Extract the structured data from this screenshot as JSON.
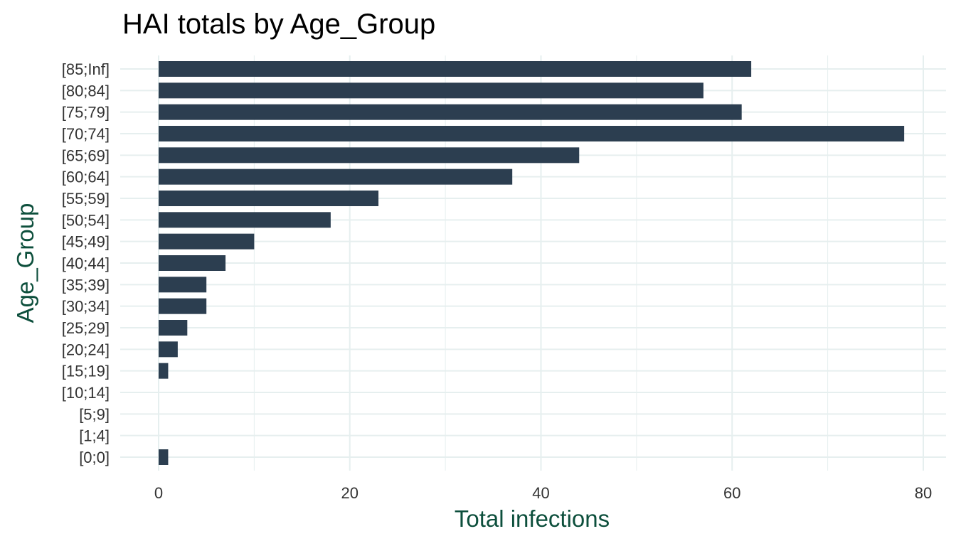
{
  "chart_data": {
    "type": "bar",
    "orientation": "horizontal",
    "title": "HAI totals by Age_Group",
    "xlabel": "Total infections",
    "ylabel": "Age_Group",
    "categories": [
      "[0;0]",
      "[1;4]",
      "[5;9]",
      "[10;14]",
      "[15;19]",
      "[20;24]",
      "[25;29]",
      "[30;34]",
      "[35;39]",
      "[40;44]",
      "[45;49]",
      "[50;54]",
      "[55;59]",
      "[60;64]",
      "[65;69]",
      "[70;74]",
      "[75;79]",
      "[80;84]",
      "[85;Inf]"
    ],
    "values": [
      1,
      0,
      0,
      0,
      1,
      2,
      3,
      5,
      5,
      7,
      10,
      18,
      23,
      37,
      44,
      78,
      61,
      57,
      62
    ],
    "xlim": [
      -4,
      81.5
    ],
    "xticks": [
      0,
      20,
      40,
      60,
      80
    ],
    "grid": true,
    "legend": "none"
  },
  "colors": {
    "bar": "#2c3e50",
    "grid": "#e6efef",
    "axis_title": "#0d4f3c",
    "tick_label": "#333333",
    "title": "#000000"
  }
}
